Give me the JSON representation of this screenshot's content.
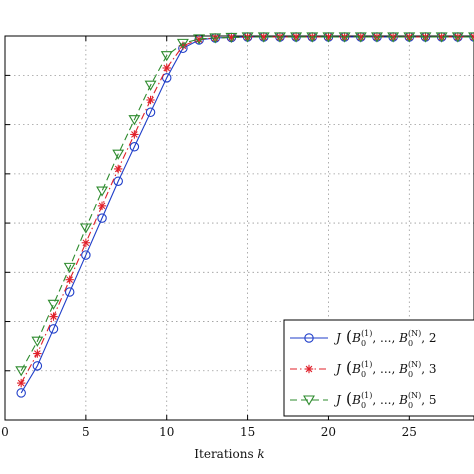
{
  "chart_data": {
    "type": "line",
    "title": "",
    "xlabel": "Iterations k",
    "ylabel": "",
    "xlim": [
      0,
      29
    ],
    "xticks": [
      0,
      5,
      10,
      15,
      20,
      25
    ],
    "ylim": [
      0,
      7.8
    ],
    "grid": true,
    "legend_position": "bottom-right",
    "x": [
      1,
      2,
      3,
      4,
      5,
      6,
      7,
      8,
      9,
      10,
      11,
      12,
      13,
      14,
      15,
      16,
      17,
      18,
      19,
      20,
      21,
      22,
      23,
      24,
      25,
      26,
      27,
      28,
      29
    ],
    "series": [
      {
        "name": "J(B_0^(1),...,B_0^(N),2",
        "legend_parts": [
          "J",
          "B",
          "0",
          "(1)",
          "...",
          "B",
          "0",
          "(N)",
          "2"
        ],
        "color": "#1f3ec9",
        "dash": "solid",
        "marker": "circle",
        "values": [
          0.55,
          1.1,
          1.85,
          2.6,
          3.35,
          4.1,
          4.85,
          5.55,
          6.25,
          6.95,
          7.55,
          7.72,
          7.76,
          7.77,
          7.78,
          7.78,
          7.78,
          7.78,
          7.78,
          7.78,
          7.78,
          7.78,
          7.78,
          7.78,
          7.78,
          7.78,
          7.78,
          7.78,
          7.78
        ]
      },
      {
        "name": "J(B_0^(1),...,B_0^(N),3",
        "legend_parts": [
          "J",
          "B",
          "0",
          "(1)",
          "...",
          "B",
          "0",
          "(N)",
          "3"
        ],
        "color": "#e0202a",
        "dash": "dashdot",
        "marker": "star",
        "values": [
          0.75,
          1.35,
          2.1,
          2.85,
          3.6,
          4.35,
          5.1,
          5.8,
          6.5,
          7.15,
          7.6,
          7.73,
          7.76,
          7.77,
          7.78,
          7.78,
          7.78,
          7.78,
          7.78,
          7.78,
          7.78,
          7.78,
          7.78,
          7.78,
          7.78,
          7.78,
          7.78,
          7.78,
          7.78
        ]
      },
      {
        "name": "J(B_0^(1),...,B_0^(N),5",
        "legend_parts": [
          "J",
          "B",
          "0",
          "(1)",
          "...",
          "B",
          "0",
          "(N)",
          "5"
        ],
        "color": "#2e8b2e",
        "dash": "dashed",
        "marker": "triangle-down",
        "values": [
          1.0,
          1.6,
          2.35,
          3.1,
          3.9,
          4.65,
          5.4,
          6.1,
          6.8,
          7.4,
          7.65,
          7.74,
          7.76,
          7.77,
          7.78,
          7.78,
          7.78,
          7.78,
          7.78,
          7.78,
          7.78,
          7.78,
          7.78,
          7.78,
          7.78,
          7.78,
          7.78,
          7.78,
          7.78
        ]
      }
    ]
  }
}
